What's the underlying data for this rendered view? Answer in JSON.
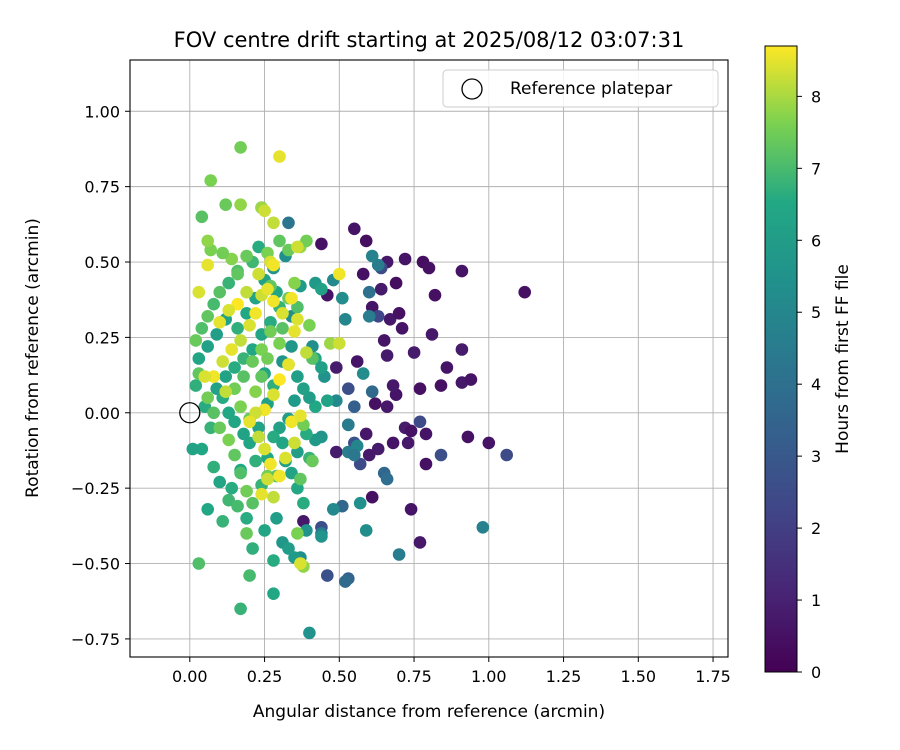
{
  "chart_data": {
    "type": "scatter",
    "title": "FOV centre drift starting at 2025/08/12 03:07:31",
    "xlabel": "Angular distance from reference (arcmin)",
    "ylabel": "Rotation from reference (arcmin)",
    "xlim": [
      -0.2,
      1.8
    ],
    "ylim": [
      -0.81,
      1.17
    ],
    "xticks": [
      0.0,
      0.25,
      0.5,
      0.75,
      1.0,
      1.25,
      1.5,
      1.75
    ],
    "xtick_labels": [
      "0.00",
      "0.25",
      "0.50",
      "0.75",
      "1.00",
      "1.25",
      "1.50",
      "1.75"
    ],
    "yticks": [
      -0.75,
      -0.5,
      -0.25,
      0.0,
      0.25,
      0.5,
      0.75,
      1.0
    ],
    "ytick_labels": [
      "−0.75",
      "−0.50",
      "−0.25",
      "0.00",
      "0.25",
      "0.50",
      "0.75",
      "1.00"
    ],
    "grid": true,
    "legend": {
      "placement": "top-right",
      "entries": [
        "Reference platepar"
      ]
    },
    "reference_point": {
      "x": 0.0,
      "y": 0.0,
      "label": "Reference platepar"
    },
    "colorbar": {
      "label": "Hours from first FF file",
      "min": 0,
      "max": 8.7,
      "ticks": [
        0,
        1,
        2,
        3,
        4,
        5,
        6,
        7,
        8
      ],
      "tick_labels": [
        "0",
        "1",
        "2",
        "3",
        "4",
        "5",
        "6",
        "7",
        "8"
      ],
      "colormap": "viridis"
    },
    "points": [
      [
        1.12,
        0.4,
        0.5
      ],
      [
        0.91,
        0.47,
        0.6
      ],
      [
        0.82,
        0.39,
        0.5
      ],
      [
        0.78,
        0.5,
        0.4
      ],
      [
        0.8,
        0.48,
        0.5
      ],
      [
        0.72,
        0.51,
        0.6
      ],
      [
        0.66,
        0.5,
        0.7
      ],
      [
        0.59,
        0.57,
        0.4
      ],
      [
        0.55,
        0.61,
        0.6
      ],
      [
        0.58,
        0.46,
        0.5
      ],
      [
        0.64,
        0.41,
        0.8
      ],
      [
        0.69,
        0.43,
        0.4
      ],
      [
        0.61,
        0.35,
        0.6
      ],
      [
        0.67,
        0.31,
        0.7
      ],
      [
        0.7,
        0.33,
        0.5
      ],
      [
        0.71,
        0.28,
        0.6
      ],
      [
        0.75,
        0.2,
        0.8
      ],
      [
        0.81,
        0.26,
        0.7
      ],
      [
        0.91,
        0.21,
        0.8
      ],
      [
        0.86,
        0.15,
        0.6
      ],
      [
        0.84,
        0.09,
        0.5
      ],
      [
        0.91,
        0.1,
        0.7
      ],
      [
        0.94,
        0.11,
        0.6
      ],
      [
        0.77,
        0.08,
        0.5
      ],
      [
        0.69,
        0.06,
        0.6
      ],
      [
        0.68,
        0.09,
        0.7
      ],
      [
        0.72,
        -0.05,
        0.8
      ],
      [
        0.74,
        -0.06,
        0.5
      ],
      [
        0.79,
        -0.07,
        0.6
      ],
      [
        0.73,
        -0.1,
        0.7
      ],
      [
        0.79,
        -0.17,
        0.5
      ],
      [
        0.68,
        -0.1,
        0.6
      ],
      [
        0.63,
        -0.12,
        0.8
      ],
      [
        0.6,
        -0.14,
        0.7
      ],
      [
        0.61,
        -0.28,
        0.5
      ],
      [
        0.74,
        -0.32,
        0.6
      ],
      [
        0.77,
        -0.43,
        0.7
      ],
      [
        0.93,
        -0.08,
        0.5
      ],
      [
        1.0,
        -0.1,
        0.6
      ],
      [
        0.66,
        0.19,
        0.8
      ],
      [
        0.65,
        0.24,
        0.6
      ],
      [
        0.62,
        0.03,
        0.5
      ],
      [
        0.66,
        0.02,
        0.7
      ],
      [
        0.49,
        0.15,
        0.8
      ],
      [
        0.44,
        0.56,
        0.5
      ],
      [
        0.46,
        0.39,
        0.6
      ],
      [
        0.38,
        -0.36,
        0.7
      ],
      [
        0.49,
        -0.13,
        0.8
      ],
      [
        0.56,
        0.17,
        0.6
      ],
      [
        0.59,
        -0.07,
        0.7
      ],
      [
        0.64,
        0.48,
        2.5
      ],
      [
        0.63,
        0.32,
        2.3
      ],
      [
        0.77,
        -0.03,
        2.4
      ],
      [
        0.84,
        -0.14,
        2.6
      ],
      [
        1.06,
        -0.14,
        2.5
      ],
      [
        0.53,
        0.08,
        2.6
      ],
      [
        0.55,
        -0.1,
        2.7
      ],
      [
        0.53,
        -0.04,
        2.4
      ],
      [
        0.57,
        -0.17,
        2.5
      ],
      [
        0.44,
        -0.38,
        2.6
      ],
      [
        0.46,
        -0.54,
        2.7
      ],
      [
        0.55,
        0.02,
        3.3
      ],
      [
        0.51,
        -0.31,
        3.6
      ],
      [
        0.53,
        -0.55,
        3.5
      ],
      [
        0.52,
        -0.56,
        3.8
      ],
      [
        0.65,
        -0.2,
        3.6
      ],
      [
        0.66,
        -0.22,
        3.9
      ],
      [
        0.61,
        0.07,
        3.7
      ],
      [
        0.6,
        0.4,
        4.0
      ],
      [
        0.6,
        0.32,
        4.6
      ],
      [
        0.63,
        0.49,
        4.5
      ],
      [
        0.61,
        0.52,
        4.8
      ],
      [
        0.33,
        0.63,
        4.2
      ],
      [
        0.24,
        0.68,
        4.4
      ],
      [
        0.44,
        -0.4,
        4.5
      ],
      [
        0.98,
        -0.38,
        4.7
      ],
      [
        0.7,
        -0.47,
        4.6
      ],
      [
        0.53,
        -0.13,
        4.6
      ],
      [
        0.56,
        -0.11,
        4.9
      ],
      [
        0.55,
        -0.14,
        4.3
      ],
      [
        0.53,
        -0.04,
        4.5
      ],
      [
        0.49,
        0.04,
        5.1
      ],
      [
        0.51,
        0.38,
        5.2
      ],
      [
        0.52,
        0.31,
        5.0
      ],
      [
        0.58,
        0.13,
        5.2
      ],
      [
        0.57,
        -0.3,
        5.4
      ],
      [
        0.59,
        -0.39,
        5.3
      ],
      [
        0.45,
        0.12,
        5.5
      ],
      [
        0.48,
        0.44,
        5.1
      ],
      [
        0.44,
        -0.08,
        5.6
      ],
      [
        0.42,
        -0.09,
        5.8
      ],
      [
        0.48,
        -0.32,
        5.1
      ],
      [
        0.39,
        -0.39,
        5.5
      ],
      [
        0.44,
        -0.41,
        5.6
      ],
      [
        0.37,
        -0.48,
        5.4
      ],
      [
        0.35,
        -0.48,
        5.9
      ],
      [
        0.31,
        -0.43,
        5.7
      ],
      [
        0.4,
        -0.73,
        5.5
      ],
      [
        0.33,
        -0.45,
        6.0
      ],
      [
        0.42,
        0.43,
        5.8
      ],
      [
        0.44,
        0.41,
        6.2
      ],
      [
        0.37,
        0.42,
        5.9
      ],
      [
        0.34,
        0.32,
        5.3
      ],
      [
        0.32,
        0.52,
        5.4
      ],
      [
        0.28,
        0.48,
        5.6
      ],
      [
        0.31,
        0.17,
        5.6
      ],
      [
        0.34,
        0.22,
        5.7
      ],
      [
        0.41,
        0.22,
        5.4
      ],
      [
        0.42,
        0.18,
        6.4
      ],
      [
        0.44,
        0.15,
        6.1
      ],
      [
        0.46,
        0.04,
        6.3
      ],
      [
        0.42,
        0.02,
        6.5
      ],
      [
        0.4,
        0.05,
        6.0
      ],
      [
        0.38,
        0.08,
        6.2
      ],
      [
        0.35,
        0.04,
        5.9
      ],
      [
        0.33,
        -0.02,
        6.0
      ],
      [
        0.3,
        -0.05,
        6.2
      ],
      [
        0.28,
        -0.08,
        6.6
      ],
      [
        0.31,
        -0.1,
        6.4
      ],
      [
        0.32,
        -0.16,
        6.1
      ],
      [
        0.34,
        -0.2,
        6.3
      ],
      [
        0.36,
        -0.25,
        6.5
      ],
      [
        0.38,
        -0.3,
        6.6
      ],
      [
        0.29,
        -0.35,
        6.0
      ],
      [
        0.25,
        -0.39,
        6.4
      ],
      [
        0.21,
        -0.45,
        6.7
      ],
      [
        0.28,
        -0.49,
        6.6
      ],
      [
        0.28,
        -0.6,
        6.5
      ],
      [
        0.17,
        -0.65,
        6.8
      ],
      [
        0.2,
        -0.54,
        7.0
      ],
      [
        0.03,
        -0.5,
        7.1
      ],
      [
        0.06,
        -0.32,
        6.5
      ],
      [
        0.11,
        -0.36,
        6.8
      ],
      [
        0.13,
        -0.29,
        6.9
      ],
      [
        0.16,
        -0.31,
        7.0
      ],
      [
        0.19,
        -0.35,
        6.6
      ],
      [
        0.17,
        -0.19,
        6.5
      ],
      [
        0.22,
        -0.16,
        6.7
      ],
      [
        0.2,
        -0.1,
        6.4
      ],
      [
        0.18,
        -0.07,
        6.3
      ],
      [
        0.15,
        -0.03,
        6.4
      ],
      [
        0.13,
        0.0,
        6.5
      ],
      [
        0.11,
        0.05,
        6.6
      ],
      [
        0.09,
        0.08,
        6.2
      ],
      [
        0.12,
        0.12,
        6.3
      ],
      [
        0.15,
        0.15,
        6.6
      ],
      [
        0.18,
        0.18,
        6.8
      ],
      [
        0.21,
        0.21,
        6.5
      ],
      [
        0.24,
        0.26,
        6.4
      ],
      [
        0.27,
        0.3,
        6.6
      ],
      [
        0.3,
        0.35,
        6.8
      ],
      [
        0.29,
        0.4,
        6.4
      ],
      [
        0.25,
        0.44,
        6.2
      ],
      [
        0.22,
        0.38,
        6.3
      ],
      [
        0.19,
        0.33,
        6.5
      ],
      [
        0.16,
        0.28,
        6.7
      ],
      [
        0.12,
        0.31,
        6.3
      ],
      [
        0.09,
        0.26,
        6.0
      ],
      [
        0.06,
        0.22,
        6.2
      ],
      [
        0.03,
        0.18,
        6.4
      ],
      [
        0.02,
        0.09,
        6.7
      ],
      [
        0.05,
        0.02,
        6.6
      ],
      [
        0.07,
        -0.05,
        6.8
      ],
      [
        0.04,
        -0.12,
        6.5
      ],
      [
        0.01,
        -0.12,
        6.3
      ],
      [
        0.08,
        -0.18,
        6.7
      ],
      [
        0.1,
        -0.23,
        6.4
      ],
      [
        0.14,
        -0.25,
        6.6
      ],
      [
        0.24,
        -0.24,
        6.8
      ],
      [
        0.26,
        -0.15,
        6.5
      ],
      [
        0.23,
        -0.05,
        6.3
      ],
      [
        0.26,
        0.03,
        6.2
      ],
      [
        0.28,
        0.09,
        6.7
      ],
      [
        0.25,
        0.13,
        6.4
      ],
      [
        0.36,
        0.12,
        6.1
      ],
      [
        0.36,
        -0.13,
        6.0
      ],
      [
        0.39,
        -0.07,
        6.6
      ],
      [
        0.4,
        -0.15,
        6.8
      ],
      [
        0.23,
        0.55,
        6.6
      ],
      [
        0.21,
        0.5,
        6.9
      ],
      [
        0.16,
        0.47,
        7.1
      ],
      [
        0.13,
        0.43,
        6.8
      ],
      [
        0.1,
        0.4,
        7.2
      ],
      [
        0.08,
        0.36,
        7.0
      ],
      [
        0.06,
        0.32,
        7.3
      ],
      [
        0.04,
        0.28,
        7.1
      ],
      [
        0.02,
        0.24,
        7.4
      ],
      [
        0.03,
        0.13,
        7.3
      ],
      [
        0.06,
        0.05,
        7.5
      ],
      [
        0.08,
        0.0,
        7.2
      ],
      [
        0.1,
        -0.05,
        7.4
      ],
      [
        0.13,
        -0.09,
        7.6
      ],
      [
        0.15,
        -0.14,
        7.3
      ],
      [
        0.17,
        -0.2,
        7.1
      ],
      [
        0.19,
        -0.26,
        7.5
      ],
      [
        0.21,
        -0.3,
        7.2
      ],
      [
        0.19,
        -0.4,
        7.4
      ],
      [
        0.26,
        -0.21,
        7.5
      ],
      [
        0.29,
        -0.21,
        7.2
      ],
      [
        0.36,
        -0.4,
        7.6
      ],
      [
        0.38,
        -0.51,
        7.8
      ],
      [
        0.37,
        -0.22,
        7.3
      ],
      [
        0.41,
        -0.16,
        7.4
      ],
      [
        0.38,
        -0.04,
        7.5
      ],
      [
        0.33,
        0.16,
        7.3
      ],
      [
        0.33,
        0.38,
        7.4
      ],
      [
        0.36,
        0.35,
        7.1
      ],
      [
        0.4,
        0.29,
        7.6
      ],
      [
        0.41,
        0.18,
        7.2
      ],
      [
        0.47,
        0.23,
        7.9
      ],
      [
        0.27,
        0.42,
        7.3
      ],
      [
        0.27,
        0.27,
        7.5
      ],
      [
        0.24,
        0.21,
        7.6
      ],
      [
        0.21,
        0.17,
        7.4
      ],
      [
        0.18,
        0.12,
        7.2
      ],
      [
        0.15,
        0.08,
        7.5
      ],
      [
        0.17,
        0.02,
        7.6
      ],
      [
        0.2,
        -0.02,
        7.4
      ],
      [
        0.22,
        0.07,
        7.7
      ],
      [
        0.24,
        0.12,
        7.3
      ],
      [
        0.26,
        0.18,
        7.5
      ],
      [
        0.3,
        0.23,
        7.6
      ],
      [
        0.31,
        0.28,
        7.2
      ],
      [
        0.35,
        0.43,
        7.7
      ],
      [
        0.33,
        0.54,
        7.4
      ],
      [
        0.37,
        0.55,
        7.8
      ],
      [
        0.39,
        0.57,
        7.5
      ],
      [
        0.3,
        0.57,
        7.3
      ],
      [
        0.26,
        0.53,
        7.6
      ],
      [
        0.19,
        0.52,
        7.4
      ],
      [
        0.16,
        0.46,
        7.3
      ],
      [
        0.14,
        0.51,
        7.7
      ],
      [
        0.11,
        0.53,
        7.5
      ],
      [
        0.07,
        0.54,
        7.6
      ],
      [
        0.06,
        0.57,
        7.8
      ],
      [
        0.04,
        0.65,
        7.2
      ],
      [
        0.07,
        0.77,
        7.6
      ],
      [
        0.12,
        0.69,
        7.4
      ],
      [
        0.17,
        0.69,
        7.8
      ],
      [
        0.24,
        0.68,
        7.9
      ],
      [
        0.17,
        0.88,
        7.5
      ],
      [
        0.28,
        0.63,
        8.2
      ],
      [
        0.25,
        0.67,
        8.3
      ],
      [
        0.3,
        0.85,
        8.5
      ],
      [
        0.27,
        0.5,
        8.4
      ],
      [
        0.28,
        0.49,
        8.6
      ],
      [
        0.36,
        0.55,
        8.3
      ],
      [
        0.34,
        0.38,
        8.6
      ],
      [
        0.36,
        0.31,
        8.4
      ],
      [
        0.35,
        0.27,
        8.5
      ],
      [
        0.5,
        0.46,
        8.6
      ],
      [
        0.5,
        0.23,
        8.3
      ],
      [
        0.39,
        0.2,
        8.2
      ],
      [
        0.33,
        0.16,
        8.5
      ],
      [
        0.3,
        0.11,
        8.7
      ],
      [
        0.28,
        0.06,
        8.4
      ],
      [
        0.25,
        0.01,
        8.6
      ],
      [
        0.22,
        0.0,
        8.3
      ],
      [
        0.2,
        -0.03,
        8.5
      ],
      [
        0.23,
        -0.08,
        8.2
      ],
      [
        0.25,
        -0.12,
        8.4
      ],
      [
        0.27,
        -0.17,
        8.6
      ],
      [
        0.26,
        -0.22,
        8.3
      ],
      [
        0.24,
        -0.27,
        8.5
      ],
      [
        0.28,
        -0.28,
        8.2
      ],
      [
        0.3,
        -0.21,
        8.6
      ],
      [
        0.32,
        -0.15,
        8.4
      ],
      [
        0.35,
        -0.1,
        8.3
      ],
      [
        0.34,
        -0.03,
        8.6
      ],
      [
        0.37,
        -0.01,
        8.5
      ],
      [
        0.37,
        -0.5,
        8.4
      ],
      [
        0.12,
        0.07,
        8.2
      ],
      [
        0.08,
        0.12,
        8.6
      ],
      [
        0.05,
        0.12,
        8.4
      ],
      [
        0.11,
        0.17,
        8.3
      ],
      [
        0.14,
        0.21,
        8.5
      ],
      [
        0.17,
        0.24,
        8.2
      ],
      [
        0.2,
        0.29,
        8.4
      ],
      [
        0.22,
        0.33,
        8.6
      ],
      [
        0.24,
        0.39,
        8.3
      ],
      [
        0.26,
        0.41,
        8.5
      ],
      [
        0.19,
        0.4,
        8.2
      ],
      [
        0.16,
        0.36,
        8.7
      ],
      [
        0.13,
        0.34,
        8.4
      ],
      [
        0.1,
        0.3,
        8.5
      ],
      [
        0.23,
        0.46,
        8.3
      ],
      [
        0.28,
        0.37,
        8.6
      ],
      [
        0.31,
        0.33,
        8.4
      ],
      [
        0.03,
        0.4,
        8.4
      ],
      [
        0.06,
        0.49,
        8.5
      ]
    ]
  }
}
